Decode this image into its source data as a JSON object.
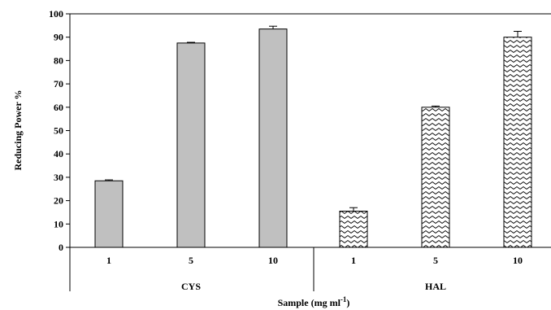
{
  "chart_data": {
    "type": "bar",
    "title": "",
    "ylabel": "Reducing Power %",
    "xlabel_main": "Sample (mg ml",
    "xlabel_sup": "-1",
    "xlabel_close": ")",
    "ylim": [
      0,
      100
    ],
    "yticks": [
      "0",
      "10",
      "20",
      "30",
      "40",
      "50",
      "60",
      "70",
      "80",
      "90",
      "100"
    ],
    "grid": false,
    "groups": [
      {
        "name": "CYS",
        "fill": "#c0c0c0",
        "pattern": "solid",
        "categories": [
          "1",
          "5",
          "10"
        ],
        "values": [
          28.5,
          87.5,
          93.5
        ],
        "errors": [
          0.4,
          0.3,
          1.2
        ]
      },
      {
        "name": "HAL",
        "fill": "#ffffff",
        "pattern": "zigzag",
        "categories": [
          "1",
          "5",
          "10"
        ],
        "values": [
          15.5,
          60,
          90
        ],
        "errors": [
          1.5,
          0.5,
          2.5
        ]
      }
    ]
  }
}
